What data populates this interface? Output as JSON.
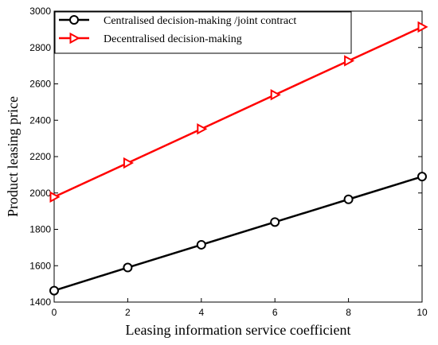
{
  "chart_data": {
    "type": "line",
    "xlabel": "Leasing information service coefficient",
    "ylabel": "Product leasing price",
    "xlim": [
      0,
      10
    ],
    "ylim": [
      1400,
      3000
    ],
    "xticks": [
      0,
      2,
      4,
      6,
      8,
      10
    ],
    "yticks": [
      1400,
      1600,
      1800,
      2000,
      2200,
      2400,
      2600,
      2800,
      3000
    ],
    "grid": false,
    "legend_position": "top-left",
    "x": [
      0,
      2,
      4,
      6,
      8,
      10
    ],
    "series": [
      {
        "name": "Centralised decision-making /joint contract",
        "color": "#000000",
        "marker": "circle",
        "values": [
          1463,
          1590,
          1715,
          1840,
          1965,
          2090
        ]
      },
      {
        "name": "Decentralised decision-making",
        "color": "#ff0000",
        "marker": "triangle-right",
        "values": [
          1978,
          2165,
          2352,
          2540,
          2727,
          2913
        ]
      }
    ]
  }
}
